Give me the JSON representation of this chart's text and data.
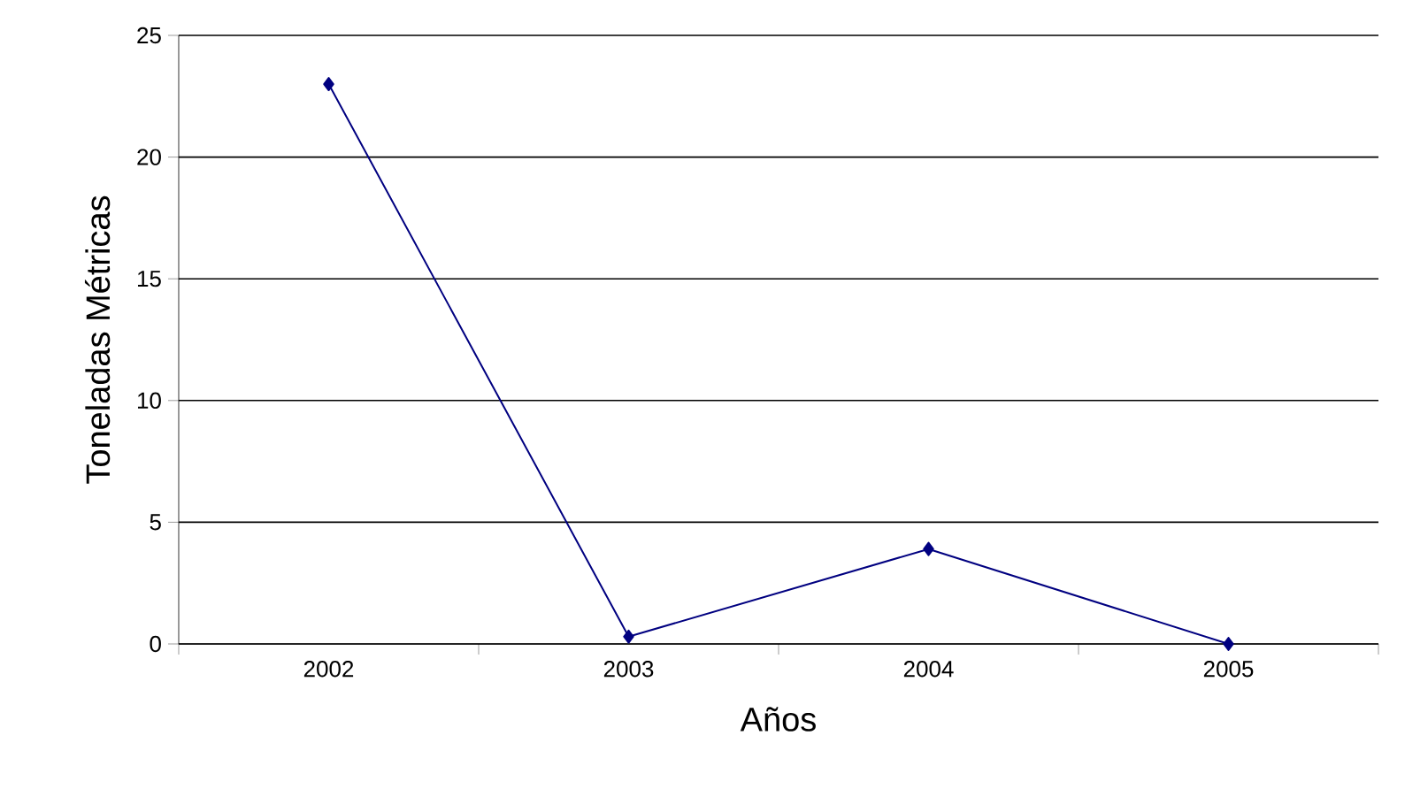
{
  "chart_data": {
    "type": "line",
    "xlabel": "Años",
    "ylabel": "Toneladas Métricas",
    "categories": [
      "2002",
      "2003",
      "2004",
      "2005"
    ],
    "series": [
      {
        "color": "#000080",
        "values": [
          23,
          0.3,
          3.9,
          0
        ]
      }
    ],
    "ylim": [
      0,
      25
    ],
    "yticks": [
      0,
      5,
      10,
      15,
      20,
      25
    ],
    "grid": "y",
    "marker": "diamond",
    "line_style": "solid"
  }
}
